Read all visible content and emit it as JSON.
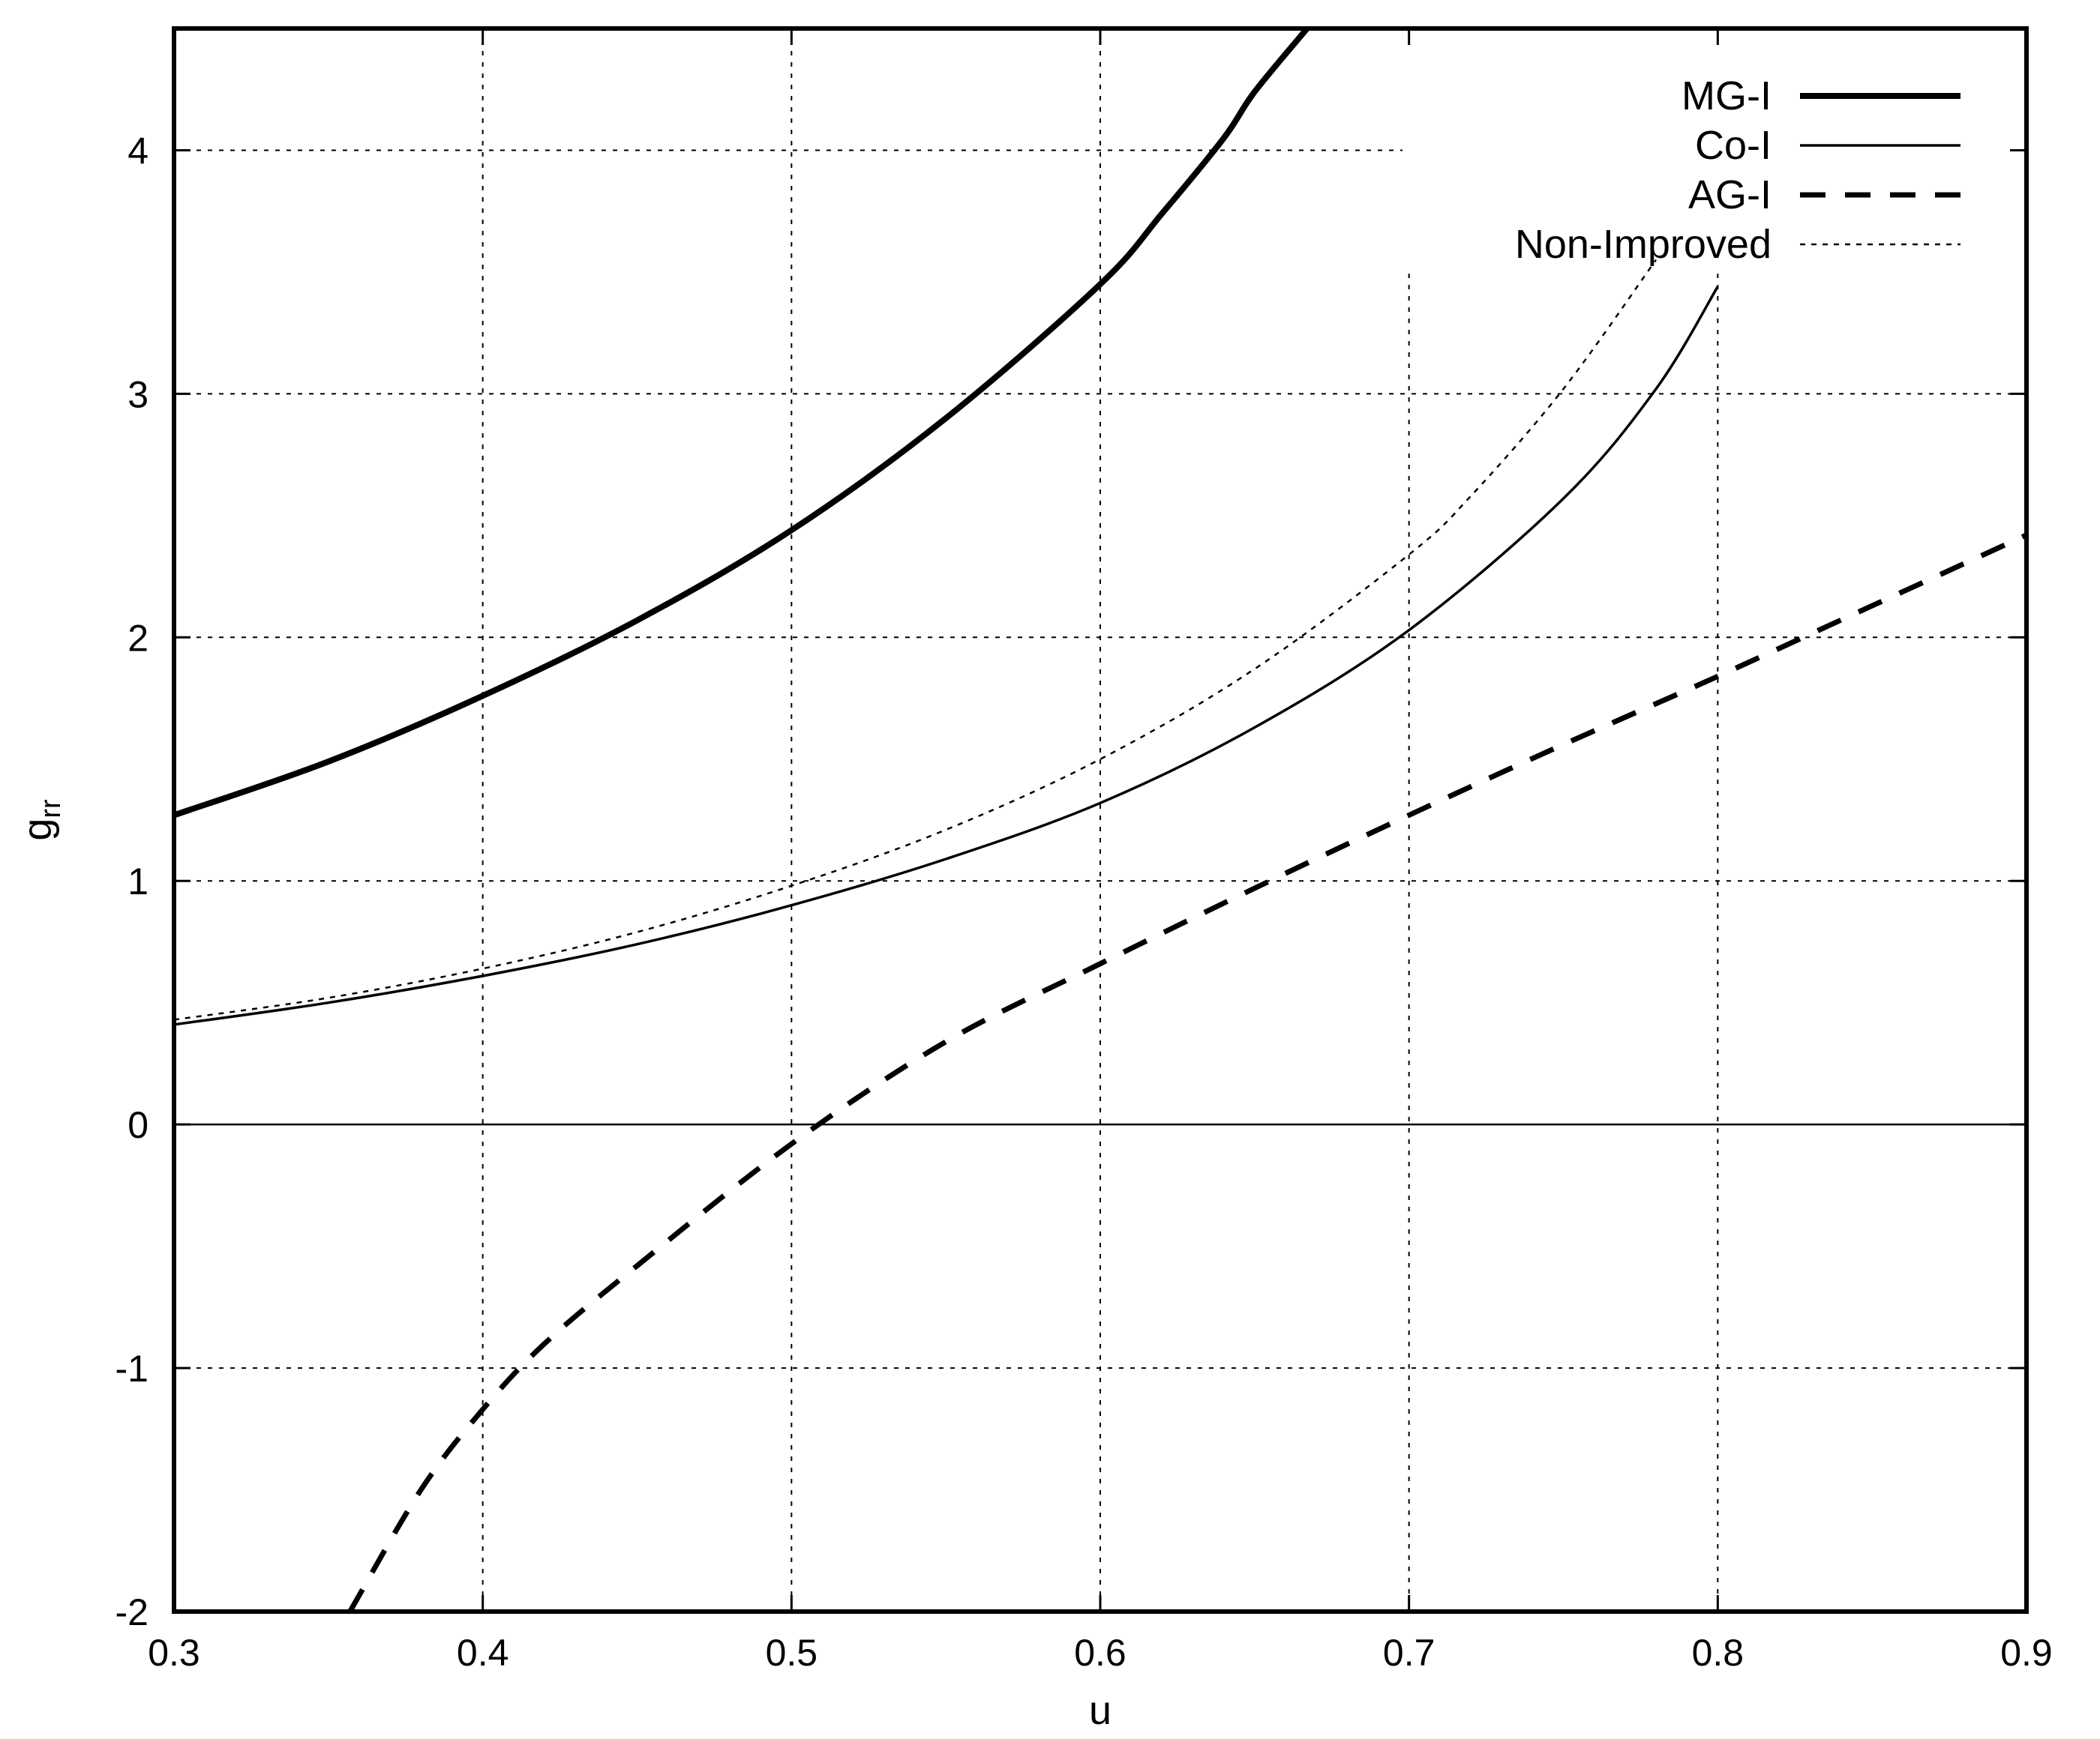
{
  "chart_data": {
    "type": "line",
    "title": "",
    "xlabel": "u",
    "ylabel_main": "g",
    "ylabel_sub": "rr",
    "xlim": [
      0.3,
      0.9
    ],
    "ylim": [
      -2,
      4.5
    ],
    "xticks": [
      0.3,
      0.4,
      0.5,
      0.6,
      0.7,
      0.8,
      0.9
    ],
    "xtick_labels": [
      "0.3",
      "0.4",
      "0.5",
      "0.6",
      "0.7",
      "0.8",
      "0.9"
    ],
    "yticks": [
      -2,
      -1,
      0,
      1,
      2,
      3,
      4
    ],
    "ytick_labels": [
      "-2",
      "-1",
      "0",
      "1",
      "2",
      "3",
      "4"
    ],
    "grid": true,
    "legend_position": "top-right",
    "series": [
      {
        "name": "MG-I",
        "style": "thick-solid",
        "x": [
          0.3,
          0.35,
          0.4,
          0.45,
          0.5,
          0.55,
          0.6,
          0.62,
          0.64,
          0.65,
          0.667
        ],
        "y": [
          1.27,
          1.49,
          1.76,
          2.07,
          2.44,
          2.9,
          3.45,
          3.74,
          4.05,
          4.24,
          4.5
        ]
      },
      {
        "name": "Co-I",
        "style": "thin-solid",
        "x": [
          0.3,
          0.35,
          0.4,
          0.45,
          0.5,
          0.55,
          0.6,
          0.65,
          0.7,
          0.75,
          0.78,
          0.8
        ],
        "y": [
          0.41,
          0.5,
          0.61,
          0.74,
          0.9,
          1.09,
          1.32,
          1.63,
          2.03,
          2.57,
          3.02,
          3.44
        ]
      },
      {
        "name": "AG-I",
        "style": "thick-dashed",
        "x": [
          0.357,
          0.38,
          0.4,
          0.42,
          0.45,
          0.5,
          0.55,
          0.6,
          0.65,
          0.7,
          0.75,
          0.8,
          0.85,
          0.9
        ],
        "y": [
          -2.0,
          -1.5,
          -1.17,
          -0.9,
          -0.58,
          -0.08,
          0.34,
          0.66,
          0.97,
          1.27,
          1.56,
          1.84,
          2.13,
          2.42
        ]
      },
      {
        "name": "Non-Improved",
        "style": "thin-dotted",
        "x": [
          0.3,
          0.35,
          0.4,
          0.45,
          0.5,
          0.55,
          0.6,
          0.65,
          0.7,
          0.72,
          0.75,
          0.78
        ],
        "y": [
          0.43,
          0.52,
          0.64,
          0.79,
          0.98,
          1.21,
          1.5,
          1.87,
          2.34,
          2.58,
          3.02,
          3.55
        ]
      }
    ]
  }
}
